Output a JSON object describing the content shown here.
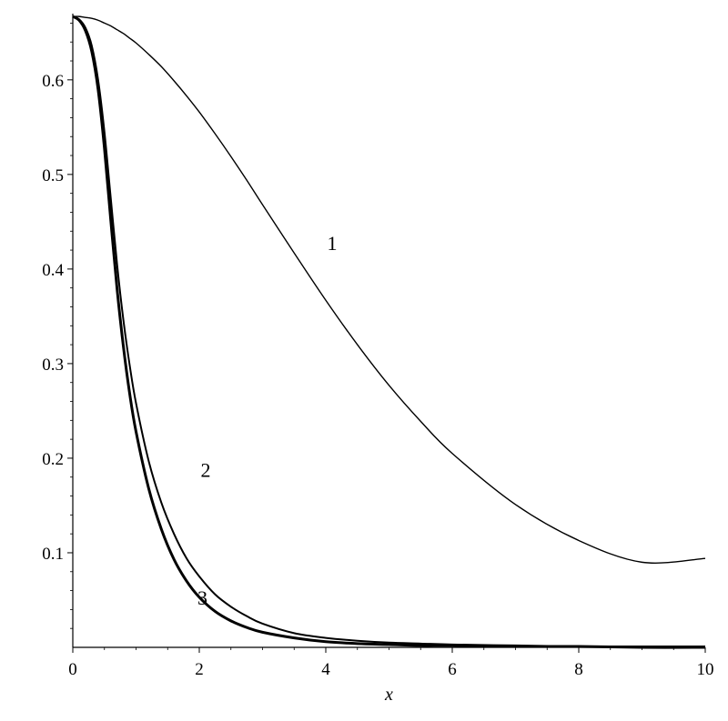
{
  "chart_data": {
    "type": "line",
    "title": "",
    "xlabel": "x",
    "ylabel": "",
    "xlim": [
      0,
      10
    ],
    "ylim": [
      0,
      0.67
    ],
    "x_ticks": [
      "0",
      "2",
      "4",
      "6",
      "8",
      "10"
    ],
    "y_ticks": [
      "0.1",
      "0.2",
      "0.3",
      "0.4",
      "0.5",
      "0.6"
    ],
    "grid": false,
    "legend": "none",
    "x": [
      0,
      0.1,
      0.2,
      0.3,
      0.4,
      0.5,
      0.6,
      0.7,
      0.8,
      0.9,
      1.0,
      1.2,
      1.4,
      1.6,
      1.8,
      2.0,
      2.25,
      2.5,
      2.75,
      3.0,
      3.5,
      4.0,
      4.5,
      5.0,
      5.5,
      6.0,
      7.0,
      8.0,
      9.0,
      10.0
    ],
    "series": [
      {
        "label": "1",
        "label_pos": [
          4.1,
          0.42
        ],
        "color": "#000000",
        "width": 1.4,
        "values": [
          0.667,
          0.667,
          0.666,
          0.665,
          0.663,
          0.66,
          0.657,
          0.653,
          0.649,
          0.644,
          0.639,
          0.627,
          0.614,
          0.599,
          0.583,
          0.566,
          0.543,
          0.519,
          0.494,
          0.468,
          0.417,
          0.367,
          0.32,
          0.277,
          0.239,
          0.205,
          0.151,
          0.113,
          0.09,
          0.094
        ]
      },
      {
        "label": "2",
        "label_pos": [
          2.1,
          0.18
        ],
        "color": "#000000",
        "width": 2.0,
        "values": [
          0.667,
          0.664,
          0.655,
          0.636,
          0.6,
          0.545,
          0.475,
          0.405,
          0.346,
          0.298,
          0.258,
          0.197,
          0.153,
          0.12,
          0.094,
          0.075,
          0.056,
          0.043,
          0.033,
          0.025,
          0.015,
          0.01,
          0.007,
          0.005,
          0.004,
          0.003,
          0.002,
          0.001,
          0.001,
          0.001
        ]
      },
      {
        "label": "3",
        "label_pos": [
          2.05,
          0.045
        ],
        "color": "#000000",
        "width": 3.0,
        "values": [
          0.667,
          0.663,
          0.652,
          0.63,
          0.59,
          0.528,
          0.452,
          0.379,
          0.318,
          0.268,
          0.228,
          0.168,
          0.125,
          0.093,
          0.07,
          0.053,
          0.038,
          0.028,
          0.021,
          0.016,
          0.01,
          0.006,
          0.004,
          0.003,
          0.002,
          0.002,
          0.001,
          0.001,
          0.0,
          0.0
        ]
      }
    ]
  }
}
